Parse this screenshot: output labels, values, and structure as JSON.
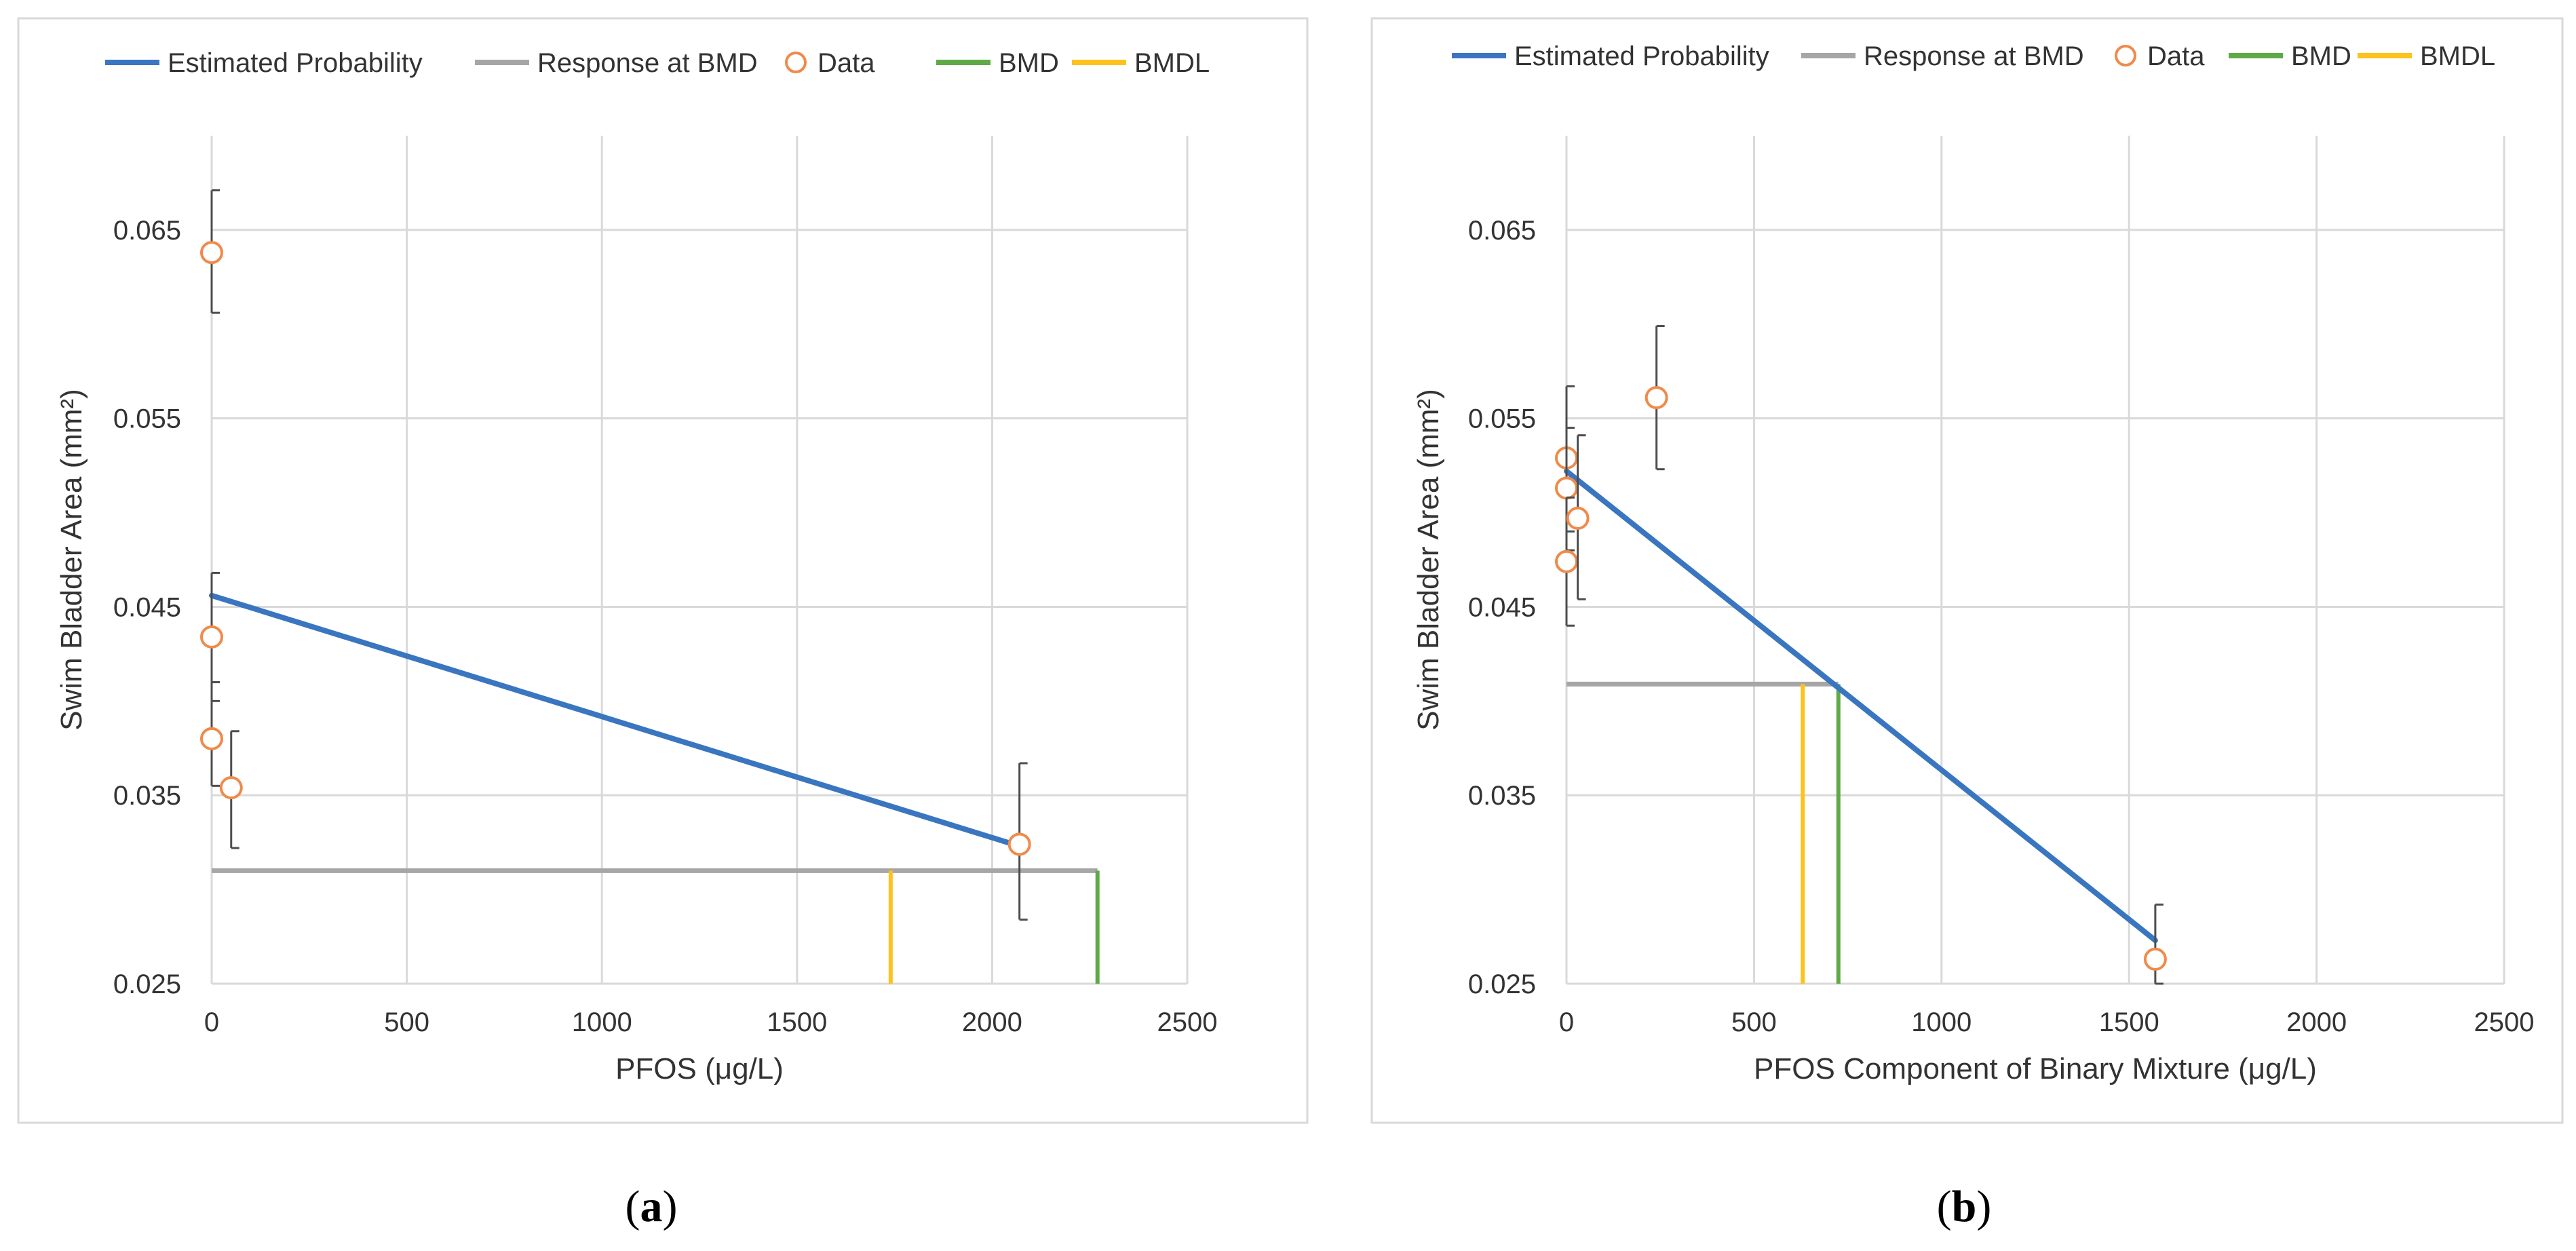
{
  "chart_data": [
    {
      "type": "scatter",
      "panel_label": "a",
      "caption_open": "(",
      "caption_close": ")",
      "xlabel": "PFOS (μg/L)",
      "ylabel": "Swim Bladder Area (mm²)",
      "xlim": [
        0,
        2500
      ],
      "ylim": [
        0.025,
        0.07
      ],
      "x_ticks": [
        0,
        500,
        1000,
        1500,
        2000,
        2500
      ],
      "x_tick_labels": [
        "0",
        "500",
        "1000",
        "1500",
        "2000",
        "2500"
      ],
      "y_ticks": [
        0.025,
        0.035,
        0.045,
        0.055,
        0.065
      ],
      "y_tick_labels": [
        "0.025",
        "0.035",
        "0.045",
        "0.055",
        "0.065"
      ],
      "grid": true,
      "legend_position": "top",
      "legend": {
        "estimated": "Estimated Probability",
        "response": "Response at BMD",
        "data": "Data",
        "bmd": "BMD",
        "bmdl": "BMDL"
      },
      "colors": {
        "estimated": "#3a76c0",
        "response": "#a6a6a6",
        "data": "#f08a4b",
        "bmd": "#5eaa46",
        "bmdl": "#fdc21c",
        "errorbar": "#4d4d4d",
        "grid": "#d9d9d9"
      },
      "estimated_line": [
        {
          "x": 0,
          "y": 0.0456
        },
        {
          "x": 2070,
          "y": 0.0323
        }
      ],
      "response_at_bmd": {
        "y": 0.031,
        "x_start": 0,
        "x_end": 2270
      },
      "bmd": {
        "x": 2270,
        "y_top": 0.031
      },
      "bmdl": {
        "x": 1740,
        "y_top": 0.031
      },
      "data_points": [
        {
          "x": 0,
          "y": 0.0638,
          "yerr_low": 0.0606,
          "yerr_high": 0.0671
        },
        {
          "x": 0,
          "y": 0.0434,
          "yerr_low": 0.04,
          "yerr_high": 0.0468
        },
        {
          "x": 0,
          "y": 0.038,
          "yerr_low": 0.0355,
          "yerr_high": 0.041
        },
        {
          "x": 50,
          "y": 0.0354,
          "yerr_low": 0.0322,
          "yerr_high": 0.0384
        },
        {
          "x": 2070,
          "y": 0.0324,
          "yerr_low": 0.0284,
          "yerr_high": 0.0367
        }
      ]
    },
    {
      "type": "scatter",
      "panel_label": "b",
      "caption_open": "(",
      "caption_close": ")",
      "xlabel": "PFOS Component of Binary Mixture (μg/L)",
      "ylabel": "Swim Bladder Area (mm²)",
      "xlim": [
        0,
        2500
      ],
      "ylim": [
        0.025,
        0.07
      ],
      "x_ticks": [
        0,
        500,
        1000,
        1500,
        2000,
        2500
      ],
      "x_tick_labels": [
        "0",
        "500",
        "1000",
        "1500",
        "2000",
        "2500"
      ],
      "y_ticks": [
        0.025,
        0.035,
        0.045,
        0.055,
        0.065
      ],
      "y_tick_labels": [
        "0.025",
        "0.035",
        "0.045",
        "0.055",
        "0.065"
      ],
      "grid": true,
      "legend_position": "top",
      "legend": {
        "estimated": "Estimated Probability",
        "response": "Response at BMD",
        "data": "Data",
        "bmd": "BMD",
        "bmdl": "BMDL"
      },
      "colors": {
        "estimated": "#3a76c0",
        "response": "#a6a6a6",
        "data": "#f08a4b",
        "bmd": "#5eaa46",
        "bmdl": "#fdc21c",
        "errorbar": "#4d4d4d",
        "grid": "#d9d9d9"
      },
      "estimated_line": [
        {
          "x": 0,
          "y": 0.0522
        },
        {
          "x": 1570,
          "y": 0.0273
        }
      ],
      "response_at_bmd": {
        "y": 0.0409,
        "x_start": 0,
        "x_end": 725
      },
      "bmd": {
        "x": 725,
        "y_top": 0.0409
      },
      "bmdl": {
        "x": 630,
        "y_top": 0.0409
      },
      "data_points": [
        {
          "x": 0,
          "y": 0.0529,
          "yerr_low": 0.049,
          "yerr_high": 0.0567
        },
        {
          "x": 0,
          "y": 0.0513,
          "yerr_low": 0.048,
          "yerr_high": 0.0545
        },
        {
          "x": 0,
          "y": 0.0474,
          "yerr_low": 0.044,
          "yerr_high": 0.0508
        },
        {
          "x": 30,
          "y": 0.0497,
          "yerr_low": 0.0454,
          "yerr_high": 0.0541
        },
        {
          "x": 240,
          "y": 0.0561,
          "yerr_low": 0.0523,
          "yerr_high": 0.0599
        },
        {
          "x": 1570,
          "y": 0.0263,
          "yerr_low": 0.025,
          "yerr_high": 0.0292
        }
      ]
    }
  ]
}
